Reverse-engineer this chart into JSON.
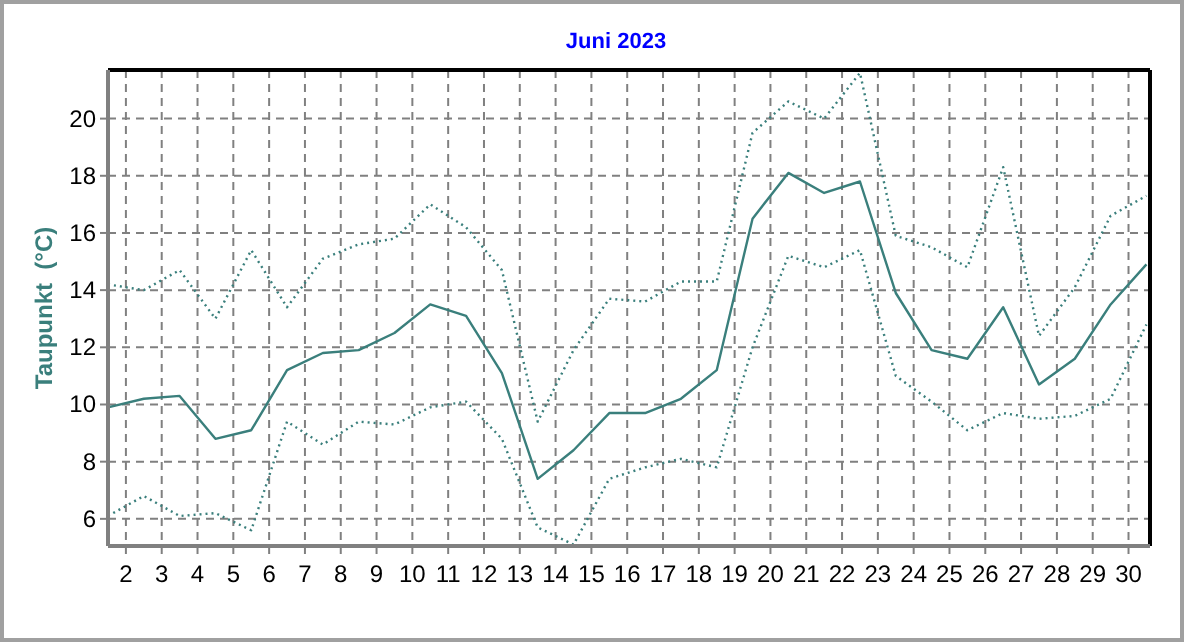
{
  "chart_data": {
    "type": "line",
    "title": "Juni 2023",
    "ylabel": "Taupunkt  (°C)",
    "xlim": [
      1.5,
      30.6
    ],
    "xticks": [
      2,
      3,
      4,
      5,
      6,
      7,
      8,
      9,
      10,
      11,
      12,
      13,
      14,
      15,
      16,
      17,
      18,
      19,
      20,
      21,
      22,
      23,
      24,
      25,
      26,
      27,
      28,
      29,
      30
    ],
    "ylim": [
      5.05,
      21.7
    ],
    "yticks": [
      6,
      8,
      10,
      12,
      14,
      16,
      18,
      20
    ],
    "grid": true,
    "x": [
      1.5,
      2.5,
      3.5,
      4.5,
      5.5,
      6.5,
      7.5,
      8.5,
      9.5,
      10.5,
      11.5,
      12.5,
      13.5,
      14.5,
      15.5,
      16.5,
      17.5,
      18.5,
      19.5,
      20.5,
      21.5,
      22.5,
      23.5,
      24.5,
      25.5,
      26.5,
      27.5,
      28.5,
      29.5,
      30.5
    ],
    "series": [
      {
        "color": "#3a7f7c",
        "line_style": "solid",
        "values": [
          9.9,
          10.2,
          10.3,
          8.8,
          9.1,
          11.2,
          11.8,
          11.9,
          12.5,
          13.5,
          13.1,
          11.1,
          7.4,
          8.4,
          9.7,
          9.7,
          10.2,
          11.2,
          16.5,
          18.1,
          17.4,
          17.8,
          13.9,
          11.9,
          11.6,
          13.4,
          10.7,
          11.6,
          13.5,
          14.9
        ]
      },
      {
        "color": "#3a7f7c",
        "line_style": "dotted",
        "values": [
          14.2,
          14.0,
          14.7,
          13.0,
          15.4,
          13.4,
          15.1,
          15.6,
          15.8,
          17.0,
          16.2,
          14.7,
          9.4,
          11.9,
          13.7,
          13.6,
          14.3,
          14.3,
          19.5,
          20.6,
          20.0,
          21.6,
          15.9,
          15.5,
          14.8,
          18.3,
          12.4,
          14.1,
          16.6,
          17.3
        ]
      },
      {
        "color": "#3a7f7c",
        "line_style": "dotted",
        "values": [
          6.1,
          6.8,
          6.1,
          6.2,
          5.6,
          9.4,
          8.6,
          9.4,
          9.3,
          9.9,
          10.1,
          8.8,
          5.7,
          5.1,
          7.4,
          7.8,
          8.1,
          7.8,
          12.0,
          15.2,
          14.8,
          15.4,
          11.0,
          10.1,
          9.1,
          9.7,
          9.5,
          9.6,
          10.2,
          12.8
        ]
      }
    ]
  }
}
